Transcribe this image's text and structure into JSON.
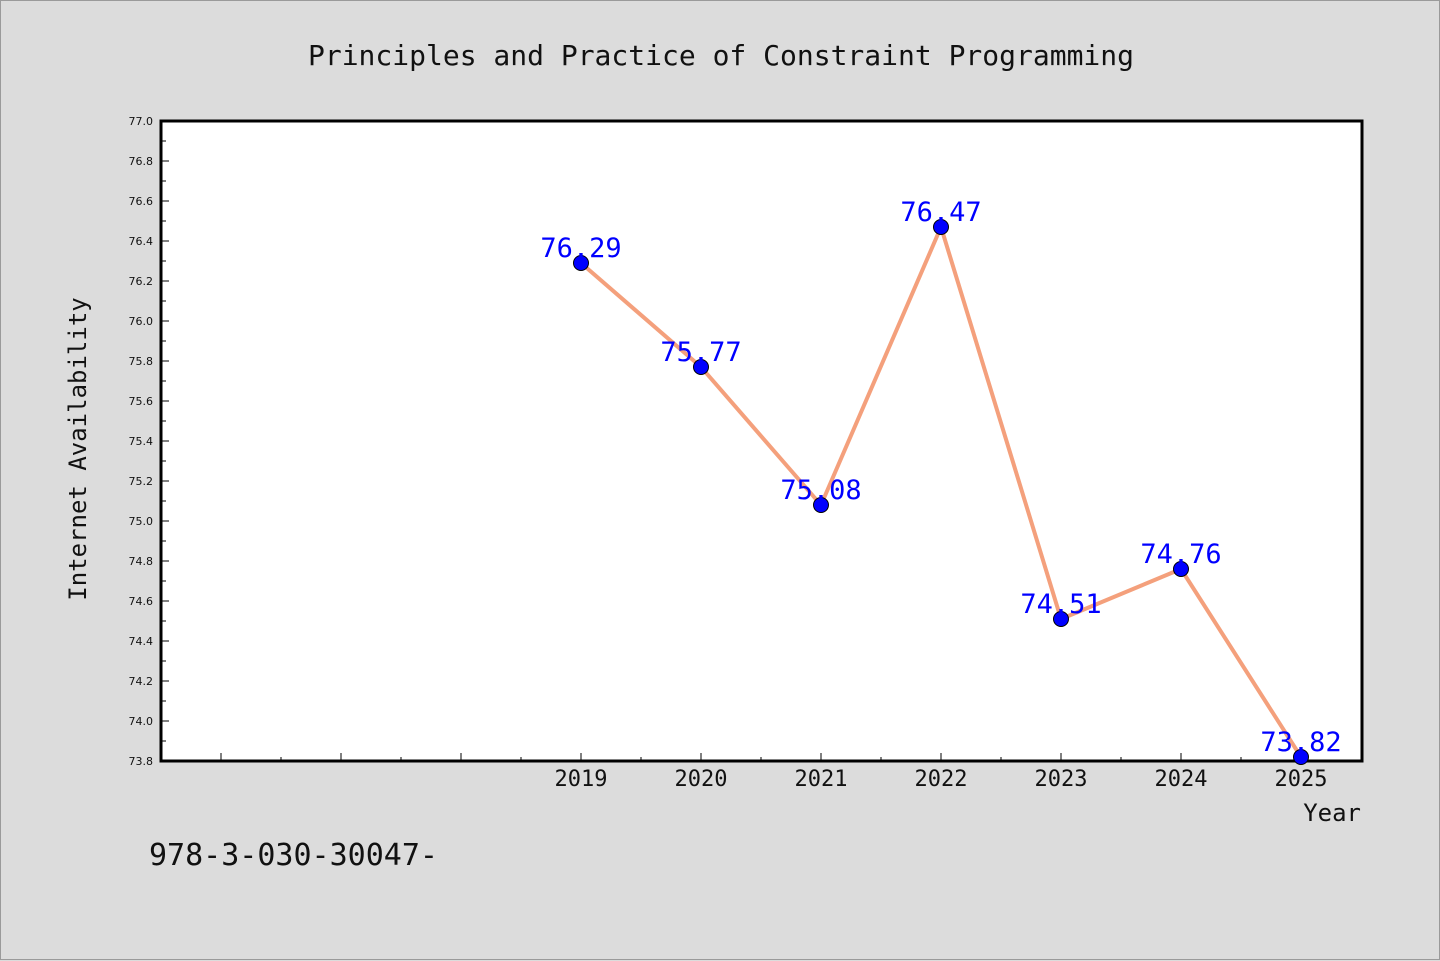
{
  "chart_data": {
    "type": "line",
    "title": "Principles and Practice of Constraint Programming",
    "xlabel": "Year",
    "ylabel": "Internet Availability",
    "x": [
      2019,
      2020,
      2021,
      2022,
      2023,
      2024,
      2025
    ],
    "x_ticks": [
      "2019",
      "2020",
      "2021",
      "2022",
      "2023",
      "2024",
      "2025"
    ],
    "series": [
      {
        "values": [
          76.29,
          75.77,
          75.08,
          76.47,
          74.51,
          74.76,
          73.82
        ],
        "labels": [
          "76.29",
          "75.77",
          "75.08",
          "76.47",
          "74.51",
          "74.76",
          "73.82"
        ],
        "line_color": "#f4a07c",
        "marker_color": "#0000ff"
      }
    ],
    "ylim": [
      73.8,
      77.0
    ],
    "y_ticks": [
      "73.8",
      "74.0",
      "74.2",
      "74.4",
      "74.6",
      "74.8",
      "75.0",
      "75.2",
      "75.4",
      "75.6",
      "75.8",
      "76.0",
      "76.2",
      "76.4",
      "76.6",
      "76.8",
      "77.0"
    ],
    "grid": false,
    "legend": "none"
  },
  "footer_text": "978-3-030-30047-",
  "colors": {
    "background": "#dcdcdc",
    "plot_background": "#ffffff",
    "label_color": "#0000ff"
  }
}
